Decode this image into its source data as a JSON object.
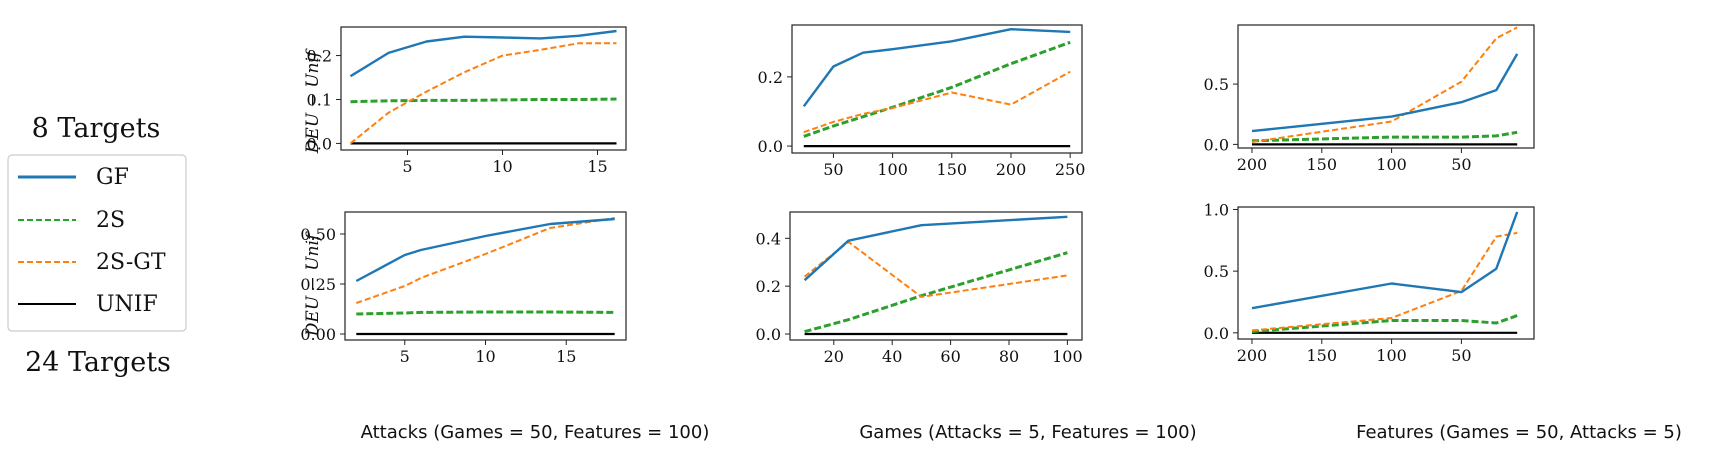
{
  "legend": {
    "title_top": "8 Targets",
    "title_bottom": "24 Targets",
    "entries": [
      {
        "label": "GF",
        "color": "#1f77b4",
        "style": "solid"
      },
      {
        "label": "2S",
        "color": "#2ca02c",
        "style": "dashed"
      },
      {
        "label": "2S-GT",
        "color": "#ff7f0e",
        "style": "dashed"
      },
      {
        "label": "UNIF",
        "color": "#000000",
        "style": "solid"
      }
    ]
  },
  "ylabel": "DEU − Unif",
  "xlabels": [
    "Attacks (Games = 50, Features = 100)",
    "Games (Attacks = 5, Features = 100)",
    "Features (Games = 50, Attacks = 5)"
  ],
  "chart_data": [
    {
      "type": "line",
      "row": "8 Targets",
      "column": "Attacks",
      "xlim": [
        1.5,
        16.5
      ],
      "ylim": [
        -0.015,
        0.265
      ],
      "x_reversed": false,
      "xticks": [
        5,
        10,
        15
      ],
      "yticks": [
        0.0,
        0.1,
        0.2
      ],
      "ytick_labels": [
        "0.0",
        "0.1",
        "0.2"
      ],
      "series": [
        {
          "name": "GF",
          "x": [
            2,
            4,
            6,
            8,
            10,
            12,
            14,
            16
          ],
          "y": [
            0.153,
            0.206,
            0.232,
            0.243,
            0.241,
            0.239,
            0.245,
            0.256
          ]
        },
        {
          "name": "2S",
          "x": [
            2,
            4,
            6,
            8,
            10,
            12,
            14,
            16
          ],
          "y": [
            0.095,
            0.097,
            0.098,
            0.098,
            0.099,
            0.1,
            0.1,
            0.101
          ]
        },
        {
          "name": "2S-GT",
          "x": [
            2,
            4,
            6,
            8,
            10,
            12,
            14,
            16
          ],
          "y": [
            0.0,
            0.07,
            0.118,
            0.162,
            0.2,
            0.213,
            0.228,
            0.228
          ]
        },
        {
          "name": "UNIF",
          "x": [
            2,
            4,
            6,
            8,
            10,
            12,
            14,
            16
          ],
          "y": [
            0,
            0,
            0,
            0,
            0,
            0,
            0,
            0
          ]
        }
      ]
    },
    {
      "type": "line",
      "row": "8 Targets",
      "column": "Games",
      "xlim": [
        15,
        260
      ],
      "ylim": [
        -0.02,
        0.35
      ],
      "x_reversed": false,
      "xticks": [
        50,
        100,
        150,
        200,
        250
      ],
      "yticks": [
        0.0,
        0.2
      ],
      "ytick_labels": [
        "0.0",
        "0.2"
      ],
      "series": [
        {
          "name": "GF",
          "x": [
            25,
            50,
            75,
            100,
            150,
            200,
            250
          ],
          "y": [
            0.115,
            0.23,
            0.27,
            0.28,
            0.303,
            0.338,
            0.33
          ]
        },
        {
          "name": "2S",
          "x": [
            25,
            50,
            75,
            100,
            150,
            200,
            250
          ],
          "y": [
            0.028,
            0.058,
            0.085,
            0.112,
            0.17,
            0.238,
            0.3
          ]
        },
        {
          "name": "2S-GT",
          "x": [
            25,
            50,
            75,
            100,
            150,
            200,
            250
          ],
          "y": [
            0.04,
            0.07,
            0.093,
            0.11,
            0.155,
            0.12,
            0.215
          ]
        },
        {
          "name": "UNIF",
          "x": [
            25,
            50,
            75,
            100,
            150,
            200,
            250
          ],
          "y": [
            0,
            0,
            0,
            0,
            0,
            0,
            0
          ]
        }
      ]
    },
    {
      "type": "line",
      "row": "8 Targets",
      "column": "Features",
      "xlim": [
        210,
        -2
      ],
      "ylim": [
        -0.03,
        0.99
      ],
      "x_reversed": true,
      "xticks": [
        200,
        150,
        100,
        50
      ],
      "yticks": [
        0.0,
        0.5
      ],
      "ytick_labels": [
        "0.0",
        "0.5"
      ],
      "series": [
        {
          "name": "GF",
          "x": [
            200,
            100,
            50,
            25,
            10
          ],
          "y": [
            0.11,
            0.23,
            0.35,
            0.45,
            0.75
          ]
        },
        {
          "name": "2S",
          "x": [
            200,
            100,
            50,
            25,
            10
          ],
          "y": [
            0.03,
            0.06,
            0.06,
            0.07,
            0.1
          ]
        },
        {
          "name": "2S-GT",
          "x": [
            200,
            100,
            50,
            25,
            10
          ],
          "y": [
            0.02,
            0.19,
            0.52,
            0.88,
            0.97
          ]
        },
        {
          "name": "UNIF",
          "x": [
            200,
            100,
            50,
            25,
            10
          ],
          "y": [
            0,
            0,
            0,
            0,
            0
          ]
        }
      ]
    },
    {
      "type": "line",
      "row": "24 Targets",
      "column": "Attacks",
      "xlim": [
        1.3,
        18.7
      ],
      "ylim": [
        -0.03,
        0.61
      ],
      "x_reversed": false,
      "xticks": [
        5,
        10,
        15
      ],
      "yticks": [
        0.0,
        0.25,
        0.5
      ],
      "ytick_labels": [
        "0.00",
        "0.25",
        "0.50"
      ],
      "series": [
        {
          "name": "GF",
          "x": [
            2,
            5,
            6,
            10,
            14,
            18
          ],
          "y": [
            0.265,
            0.395,
            0.42,
            0.49,
            0.55,
            0.575
          ]
        },
        {
          "name": "2S",
          "x": [
            2,
            5,
            6,
            10,
            14,
            18
          ],
          "y": [
            0.1,
            0.105,
            0.108,
            0.11,
            0.11,
            0.108
          ]
        },
        {
          "name": "2S-GT",
          "x": [
            2,
            5,
            6,
            10,
            14,
            18
          ],
          "y": [
            0.155,
            0.24,
            0.28,
            0.4,
            0.53,
            0.58
          ]
        },
        {
          "name": "UNIF",
          "x": [
            2,
            5,
            6,
            10,
            14,
            18
          ],
          "y": [
            0,
            0,
            0,
            0,
            0,
            0
          ]
        }
      ]
    },
    {
      "type": "line",
      "row": "24 Targets",
      "column": "Games",
      "xlim": [
        5,
        105
      ],
      "ylim": [
        -0.025,
        0.51
      ],
      "x_reversed": false,
      "xticks": [
        20,
        40,
        60,
        80,
        100
      ],
      "yticks": [
        0.0,
        0.2,
        0.4
      ],
      "ytick_labels": [
        "0.0",
        "0.2",
        "0.4"
      ],
      "series": [
        {
          "name": "GF",
          "x": [
            10,
            25,
            50,
            100
          ],
          "y": [
            0.225,
            0.39,
            0.455,
            0.49
          ]
        },
        {
          "name": "2S",
          "x": [
            10,
            25,
            50,
            100
          ],
          "y": [
            0.01,
            0.06,
            0.16,
            0.34
          ]
        },
        {
          "name": "2S-GT",
          "x": [
            10,
            25,
            50,
            100
          ],
          "y": [
            0.24,
            0.385,
            0.155,
            0.245
          ]
        },
        {
          "name": "UNIF",
          "x": [
            10,
            25,
            50,
            100
          ],
          "y": [
            0,
            0,
            0,
            0
          ]
        }
      ]
    },
    {
      "type": "line",
      "row": "24 Targets",
      "column": "Features",
      "xlim": [
        210,
        -2
      ],
      "ylim": [
        -0.05,
        1.02
      ],
      "x_reversed": true,
      "xticks": [
        200,
        150,
        100,
        50
      ],
      "yticks": [
        0.0,
        0.5,
        1.0
      ],
      "ytick_labels": [
        "0.0",
        "0.5",
        "1.0"
      ],
      "series": [
        {
          "name": "GF",
          "x": [
            200,
            100,
            50,
            25,
            10
          ],
          "y": [
            0.2,
            0.4,
            0.33,
            0.52,
            0.98
          ]
        },
        {
          "name": "2S",
          "x": [
            200,
            100,
            50,
            25,
            10
          ],
          "y": [
            0.01,
            0.1,
            0.1,
            0.08,
            0.14
          ]
        },
        {
          "name": "2S-GT",
          "x": [
            200,
            100,
            50,
            25,
            10
          ],
          "y": [
            0.02,
            0.12,
            0.34,
            0.78,
            0.81
          ]
        },
        {
          "name": "UNIF",
          "x": [
            200,
            100,
            50,
            25,
            10
          ],
          "y": [
            0,
            0,
            0,
            0,
            0
          ]
        }
      ]
    }
  ]
}
